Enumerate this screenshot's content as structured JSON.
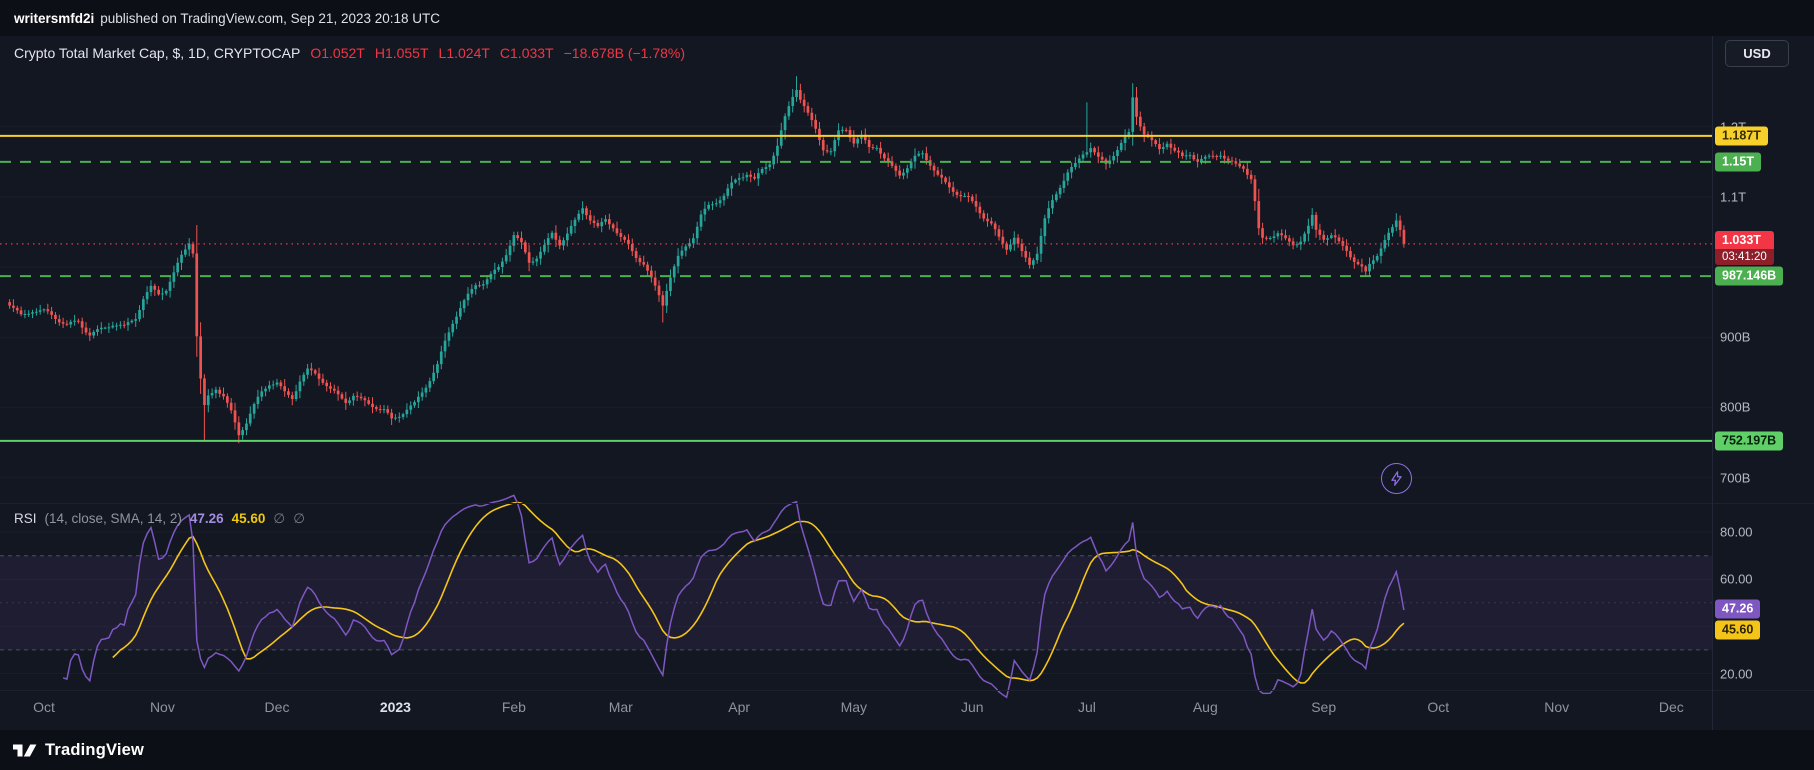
{
  "attribution": {
    "username": "writersmfd2i",
    "text": "published on TradingView.com, Sep 21, 2023 20:18 UTC"
  },
  "toolbar": {
    "currency_label": "USD"
  },
  "legend": {
    "title": "Crypto Total Market Cap, $, 1D, CRYPTOCAP",
    "open": "O1.052T",
    "high": "H1.055T",
    "low": "L1.024T",
    "close": "C1.033T",
    "change": "−18.678B (−1.78%)"
  },
  "rsi_legend": {
    "name": "RSI",
    "params": "(14, close, SMA, 14, 2)",
    "value": "47.26",
    "sma_value": "45.60",
    "empty1": "∅",
    "empty2": "∅"
  },
  "footer": {
    "brand": "TradingView"
  },
  "colors": {
    "background": "#131722",
    "panel": "#0c0f16",
    "up": "#26a69a",
    "down": "#ef5350",
    "accent_red": "#f23645",
    "accent_yellow": "#f8d02c",
    "green_dashed": "#4caf50",
    "green_solid": "#5fd068",
    "rsi": "#7e57c2",
    "rsi_sma": "#f4c518",
    "text": "#d1d4dc",
    "muted": "#787b86"
  },
  "chart_data": {
    "type": "candlestick",
    "title": "Crypto Total Market Cap, $, 1D, CRYPTOCAP",
    "symbol": "CRYPTOCAP",
    "interval": "1D",
    "unit": "billions USD",
    "day0_date": "2022-10-01",
    "last_bar_date": "2023-09-21",
    "ohlc_today": {
      "open": 1052,
      "high": 1055,
      "low": 1024,
      "close": 1033,
      "change_billions": -18.678,
      "change_pct": -1.78
    },
    "y_axis": {
      "ylim": [
        668,
        1328
      ],
      "ticks": [
        {
          "value": 1200,
          "label": "1.2T"
        },
        {
          "value": 1100,
          "label": "1.1T"
        },
        {
          "value": 900,
          "label": "900B"
        },
        {
          "value": 800,
          "label": "800B"
        },
        {
          "value": 700,
          "label": "700B"
        }
      ]
    },
    "x_axis": {
      "labels": [
        {
          "label": "Oct",
          "day": 0,
          "major": false
        },
        {
          "label": "Nov",
          "day": 31,
          "major": false
        },
        {
          "label": "Dec",
          "day": 61,
          "major": false
        },
        {
          "label": "2023",
          "day": 92,
          "major": true
        },
        {
          "label": "Feb",
          "day": 123,
          "major": false
        },
        {
          "label": "Mar",
          "day": 151,
          "major": false
        },
        {
          "label": "Apr",
          "day": 182,
          "major": false
        },
        {
          "label": "May",
          "day": 212,
          "major": false
        },
        {
          "label": "Jun",
          "day": 243,
          "major": false
        },
        {
          "label": "Jul",
          "day": 273,
          "major": false
        },
        {
          "label": "Aug",
          "day": 304,
          "major": false
        },
        {
          "label": "Sep",
          "day": 335,
          "major": false
        },
        {
          "label": "Oct",
          "day": 365,
          "major": false
        },
        {
          "label": "Nov",
          "day": 396,
          "major": false
        },
        {
          "label": "Dec",
          "day": 426,
          "major": false
        }
      ]
    },
    "levels": [
      {
        "value": 1187,
        "label": "1.187T",
        "style": "solid",
        "color": "#f8d02c",
        "label_text_color": "#352f00",
        "is_current_price": false
      },
      {
        "value": 1150,
        "label": "1.15T",
        "style": "dashed",
        "color": "#4caf50",
        "label_text_color": "#ffffff",
        "is_current_price": false
      },
      {
        "value": 1033,
        "label": "1.033T",
        "style": "dotted",
        "color": "#f23645",
        "label_text_color": "#ffffff",
        "is_current_price": true,
        "countdown": "03:41:20"
      },
      {
        "value": 987.146,
        "label": "987.146B",
        "style": "dashed",
        "color": "#4caf50",
        "label_text_color": "#ffffff",
        "is_current_price": false
      },
      {
        "value": 752.197,
        "label": "752.197B",
        "style": "solid",
        "color": "#5fd068",
        "label_text_color": "#06210b",
        "is_current_price": false
      }
    ],
    "close_anchors": [
      [
        -9,
        948
      ],
      [
        -6,
        932
      ],
      [
        -3,
        940
      ],
      [
        0,
        936
      ],
      [
        3,
        926
      ],
      [
        6,
        916
      ],
      [
        9,
        924
      ],
      [
        12,
        906
      ],
      [
        15,
        912
      ],
      [
        18,
        918
      ],
      [
        21,
        912
      ],
      [
        24,
        928
      ],
      [
        26,
        956
      ],
      [
        28,
        972
      ],
      [
        30,
        964
      ],
      [
        32,
        970
      ],
      [
        34,
        990
      ],
      [
        36,
        1014
      ],
      [
        38,
        1034
      ],
      [
        39,
        1020
      ],
      [
        40,
        900
      ],
      [
        41,
        838
      ],
      [
        42,
        800
      ],
      [
        43,
        816
      ],
      [
        45,
        830
      ],
      [
        47,
        818
      ],
      [
        49,
        794
      ],
      [
        51,
        762
      ],
      [
        53,
        778
      ],
      [
        55,
        800
      ],
      [
        57,
        820
      ],
      [
        59,
        834
      ],
      [
        61,
        836
      ],
      [
        63,
        822
      ],
      [
        65,
        816
      ],
      [
        67,
        840
      ],
      [
        69,
        852
      ],
      [
        71,
        846
      ],
      [
        73,
        836
      ],
      [
        75,
        824
      ],
      [
        77,
        816
      ],
      [
        79,
        810
      ],
      [
        81,
        820
      ],
      [
        83,
        812
      ],
      [
        85,
        806
      ],
      [
        87,
        800
      ],
      [
        89,
        794
      ],
      [
        91,
        780
      ],
      [
        93,
        788
      ],
      [
        95,
        798
      ],
      [
        97,
        806
      ],
      [
        99,
        824
      ],
      [
        101,
        842
      ],
      [
        103,
        860
      ],
      [
        105,
        892
      ],
      [
        107,
        920
      ],
      [
        109,
        940
      ],
      [
        111,
        958
      ],
      [
        113,
        976
      ],
      [
        115,
        980
      ],
      [
        117,
        990
      ],
      [
        119,
        1000
      ],
      [
        121,
        1020
      ],
      [
        123,
        1044
      ],
      [
        125,
        1030
      ],
      [
        127,
        1006
      ],
      [
        129,
        1014
      ],
      [
        131,
        1030
      ],
      [
        133,
        1050
      ],
      [
        135,
        1036
      ],
      [
        137,
        1048
      ],
      [
        139,
        1064
      ],
      [
        141,
        1084
      ],
      [
        143,
        1066
      ],
      [
        145,
        1054
      ],
      [
        147,
        1068
      ],
      [
        149,
        1060
      ],
      [
        151,
        1044
      ],
      [
        153,
        1032
      ],
      [
        155,
        1016
      ],
      [
        157,
        1004
      ],
      [
        159,
        980
      ],
      [
        161,
        958
      ],
      [
        162,
        946
      ],
      [
        163,
        968
      ],
      [
        164,
        986
      ],
      [
        166,
        1014
      ],
      [
        168,
        1032
      ],
      [
        170,
        1046
      ],
      [
        172,
        1074
      ],
      [
        174,
        1086
      ],
      [
        176,
        1092
      ],
      [
        178,
        1100
      ],
      [
        180,
        1116
      ],
      [
        182,
        1128
      ],
      [
        184,
        1136
      ],
      [
        186,
        1126
      ],
      [
        188,
        1140
      ],
      [
        190,
        1150
      ],
      [
        192,
        1172
      ],
      [
        194,
        1210
      ],
      [
        196,
        1242
      ],
      [
        197,
        1254
      ],
      [
        198,
        1240
      ],
      [
        200,
        1218
      ],
      [
        202,
        1198
      ],
      [
        204,
        1172
      ],
      [
        206,
        1166
      ],
      [
        208,
        1192
      ],
      [
        210,
        1196
      ],
      [
        212,
        1176
      ],
      [
        214,
        1184
      ],
      [
        216,
        1170
      ],
      [
        218,
        1174
      ],
      [
        220,
        1156
      ],
      [
        222,
        1144
      ],
      [
        224,
        1134
      ],
      [
        226,
        1142
      ],
      [
        228,
        1154
      ],
      [
        230,
        1160
      ],
      [
        232,
        1146
      ],
      [
        234,
        1130
      ],
      [
        236,
        1120
      ],
      [
        238,
        1112
      ],
      [
        240,
        1104
      ],
      [
        242,
        1098
      ],
      [
        244,
        1086
      ],
      [
        246,
        1070
      ],
      [
        248,
        1058
      ],
      [
        250,
        1040
      ],
      [
        252,
        1028
      ],
      [
        254,
        1044
      ],
      [
        256,
        1022
      ],
      [
        258,
        1006
      ],
      [
        260,
        1022
      ],
      [
        262,
        1066
      ],
      [
        264,
        1092
      ],
      [
        266,
        1114
      ],
      [
        268,
        1134
      ],
      [
        270,
        1146
      ],
      [
        272,
        1164
      ],
      [
        274,
        1174
      ],
      [
        276,
        1156
      ],
      [
        278,
        1146
      ],
      [
        280,
        1160
      ],
      [
        282,
        1174
      ],
      [
        284,
        1188
      ],
      [
        285,
        1240
      ],
      [
        286,
        1216
      ],
      [
        288,
        1192
      ],
      [
        290,
        1180
      ],
      [
        292,
        1170
      ],
      [
        294,
        1180
      ],
      [
        296,
        1164
      ],
      [
        298,
        1154
      ],
      [
        300,
        1160
      ],
      [
        302,
        1150
      ],
      [
        304,
        1154
      ],
      [
        306,
        1160
      ],
      [
        308,
        1164
      ],
      [
        310,
        1152
      ],
      [
        312,
        1146
      ],
      [
        314,
        1142
      ],
      [
        316,
        1124
      ],
      [
        317,
        1090
      ],
      [
        318,
        1050
      ],
      [
        319,
        1038
      ],
      [
        321,
        1044
      ],
      [
        323,
        1050
      ],
      [
        325,
        1040
      ],
      [
        327,
        1034
      ],
      [
        329,
        1040
      ],
      [
        331,
        1056
      ],
      [
        332,
        1070
      ],
      [
        333,
        1050
      ],
      [
        335,
        1040
      ],
      [
        337,
        1044
      ],
      [
        339,
        1034
      ],
      [
        341,
        1026
      ],
      [
        343,
        1012
      ],
      [
        345,
        1000
      ],
      [
        346,
        992
      ],
      [
        347,
        1004
      ],
      [
        349,
        1018
      ],
      [
        351,
        1036
      ],
      [
        353,
        1052
      ],
      [
        354,
        1064
      ],
      [
        355,
        1054
      ],
      [
        356,
        1033
      ]
    ],
    "wick_high_overrides": [
      [
        197,
        1272
      ],
      [
        273,
        1235
      ],
      [
        285,
        1262
      ]
    ],
    "wick_low_overrides": [
      [
        42,
        753
      ],
      [
        51,
        749
      ],
      [
        162,
        921
      ],
      [
        346,
        987
      ]
    ],
    "indicator_rsi": {
      "name": "RSI",
      "params": "14, close, SMA, 14, 2",
      "current_value": 47.26,
      "sma_current_value": 45.6,
      "ylim": [
        13,
        91.5
      ],
      "ticks": [
        {
          "value": 80,
          "label": "80.00"
        },
        {
          "value": 60,
          "label": "60.00"
        },
        {
          "value": 20,
          "label": "20.00"
        }
      ],
      "bands": {
        "upper": 70,
        "middle": 50,
        "lower": 30
      },
      "legend_position": "top-left"
    }
  }
}
